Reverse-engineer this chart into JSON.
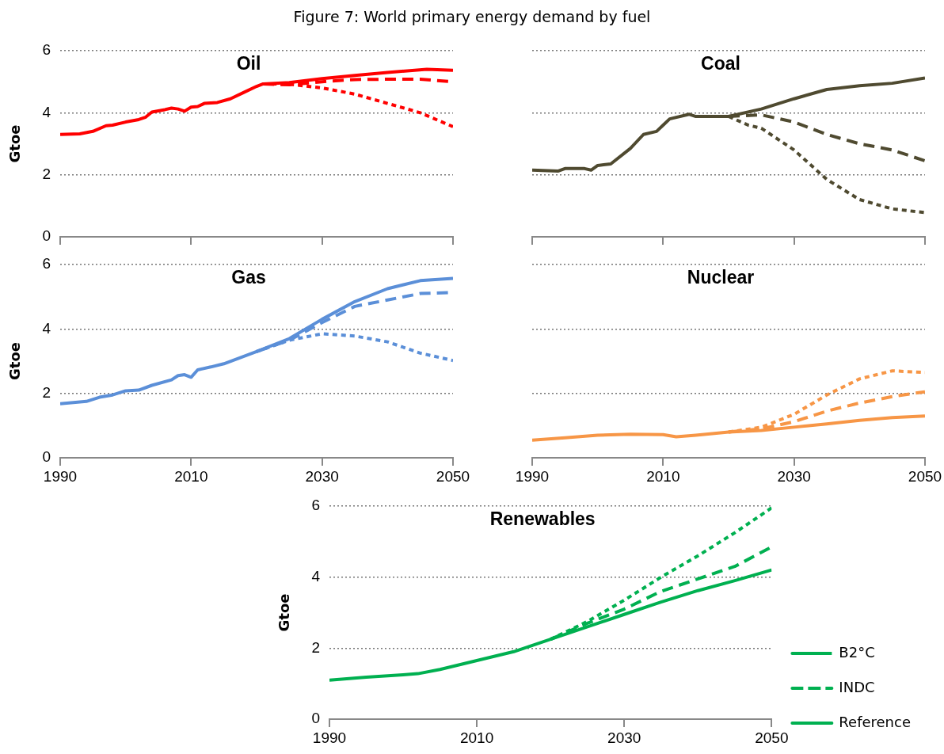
{
  "chart_data": [
    {
      "type": "line",
      "title": "Oil",
      "ylabel": "Gtoe",
      "annotations": [
        "Figure 7: World primary energy demand by fuel"
      ],
      "xlim": [
        1990,
        2050
      ],
      "xticks": [
        1990,
        2010,
        2030,
        2050
      ],
      "ylim": [
        0,
        6
      ],
      "yticks": [
        0,
        2,
        4,
        6
      ],
      "grid": "y",
      "tick_labels": "y",
      "series": [
        {
          "color": "#ff0000",
          "line_style": "dotted",
          "x": [
            2021,
            2025,
            2030,
            2035,
            2040,
            2045,
            2050
          ],
          "values": [
            4.93,
            4.92,
            4.8,
            4.6,
            4.3,
            4.0,
            3.55
          ]
        },
        {
          "color": "#ff0000",
          "line_style": "dashed",
          "x": [
            2021,
            2025,
            2030,
            2035,
            2040,
            2045,
            2050
          ],
          "values": [
            4.93,
            4.9,
            5.0,
            5.07,
            5.08,
            5.08,
            5.0
          ]
        },
        {
          "color": "#ff0000",
          "line_style": "solid",
          "x": [
            1990,
            1993,
            1995,
            1997,
            1998,
            2000,
            2002,
            2003,
            2004,
            2006,
            2007,
            2008,
            2009,
            2010,
            2011,
            2012,
            2014,
            2016,
            2018,
            2020,
            2021,
            2025,
            2030,
            2035,
            2040,
            2046,
            2050
          ],
          "values": [
            3.3,
            3.32,
            3.4,
            3.58,
            3.6,
            3.7,
            3.78,
            3.85,
            4.02,
            4.1,
            4.15,
            4.12,
            4.05,
            4.18,
            4.2,
            4.3,
            4.33,
            4.45,
            4.65,
            4.85,
            4.93,
            4.97,
            5.1,
            5.2,
            5.3,
            5.4,
            5.37
          ]
        }
      ]
    },
    {
      "type": "line",
      "title": "Coal",
      "xlim": [
        1990,
        2050
      ],
      "xticks": [
        1990,
        2010,
        2030,
        2050
      ],
      "ylim": [
        0,
        6
      ],
      "yticks": [
        0,
        2,
        4,
        6
      ],
      "grid": "y",
      "tick_labels": false,
      "series": [
        {
          "color": "#4f4a30",
          "line_style": "dotted",
          "x": [
            2020,
            2023,
            2025,
            2030,
            2035,
            2040,
            2045,
            2050
          ],
          "values": [
            3.88,
            3.6,
            3.5,
            2.8,
            1.85,
            1.2,
            0.9,
            0.78
          ]
        },
        {
          "color": "#4f4a30",
          "line_style": "dashed",
          "x": [
            2020,
            2025,
            2030,
            2035,
            2040,
            2045,
            2050
          ],
          "values": [
            3.88,
            3.93,
            3.7,
            3.3,
            3.0,
            2.8,
            2.45
          ]
        },
        {
          "color": "#4f4a30",
          "line_style": "solid",
          "x": [
            1990,
            1994,
            1995,
            1998,
            1999,
            2000,
            2002,
            2005,
            2007,
            2009,
            2010,
            2011,
            2014,
            2015,
            2020,
            2025,
            2030,
            2035,
            2040,
            2045,
            2050
          ],
          "values": [
            2.15,
            2.12,
            2.2,
            2.2,
            2.15,
            2.3,
            2.35,
            2.85,
            3.3,
            3.4,
            3.6,
            3.8,
            3.95,
            3.88,
            3.88,
            4.12,
            4.45,
            4.75,
            4.87,
            4.95,
            5.12
          ]
        }
      ]
    },
    {
      "type": "line",
      "title": "Gas",
      "ylabel": "Gtoe",
      "xlim": [
        1990,
        2050
      ],
      "xticks": [
        1990,
        2010,
        2030,
        2050
      ],
      "ylim": [
        0,
        6
      ],
      "yticks": [
        0,
        2,
        4,
        6
      ],
      "grid": "y",
      "series": [
        {
          "color": "#5b8fd8",
          "line_style": "dotted",
          "x": [
            2020,
            2025,
            2030,
            2035,
            2040,
            2045,
            2050
          ],
          "values": [
            3.3,
            3.65,
            3.85,
            3.78,
            3.6,
            3.25,
            3.02
          ]
        },
        {
          "color": "#5b8fd8",
          "line_style": "dashed",
          "x": [
            2020,
            2025,
            2030,
            2035,
            2040,
            2045,
            2050
          ],
          "values": [
            3.3,
            3.65,
            4.2,
            4.7,
            4.9,
            5.1,
            5.13
          ]
        },
        {
          "color": "#5b8fd8",
          "line_style": "solid",
          "x": [
            1990,
            1994,
            1996,
            1998,
            2000,
            2002,
            2004,
            2007,
            2008,
            2009,
            2010,
            2011,
            2013,
            2015,
            2020,
            2025,
            2030,
            2035,
            2040,
            2045,
            2050
          ],
          "values": [
            1.68,
            1.75,
            1.88,
            1.95,
            2.08,
            2.1,
            2.25,
            2.42,
            2.55,
            2.58,
            2.5,
            2.73,
            2.82,
            2.92,
            3.3,
            3.7,
            4.3,
            4.85,
            5.25,
            5.5,
            5.57
          ]
        }
      ]
    },
    {
      "type": "line",
      "title": "Nuclear",
      "xlim": [
        1990,
        2050
      ],
      "xticks": [
        1990,
        2010,
        2030,
        2050
      ],
      "ylim": [
        0,
        6
      ],
      "yticks": [
        0,
        2,
        4,
        6
      ],
      "grid": "y",
      "tick_labels": "x",
      "series": [
        {
          "color": "#f79646",
          "line_style": "dotted",
          "x": [
            2020,
            2025,
            2030,
            2035,
            2040,
            2045,
            2050
          ],
          "values": [
            0.8,
            0.95,
            1.35,
            1.95,
            2.45,
            2.7,
            2.65
          ]
        },
        {
          "color": "#f79646",
          "line_style": "dashed",
          "x": [
            2020,
            2025,
            2030,
            2035,
            2040,
            2045,
            2050
          ],
          "values": [
            0.8,
            0.9,
            1.12,
            1.45,
            1.7,
            1.9,
            2.05
          ]
        },
        {
          "color": "#f79646",
          "line_style": "solid",
          "x": [
            1990,
            1995,
            2000,
            2005,
            2010,
            2012,
            2015,
            2020,
            2025,
            2030,
            2035,
            2040,
            2045,
            2050
          ],
          "values": [
            0.55,
            0.62,
            0.7,
            0.73,
            0.72,
            0.65,
            0.7,
            0.8,
            0.85,
            0.95,
            1.05,
            1.16,
            1.25,
            1.3
          ]
        }
      ]
    },
    {
      "type": "line",
      "title": "Renewables",
      "ylabel": "Gtoe",
      "xlim": [
        1990,
        2050
      ],
      "xticks": [
        1990,
        2010,
        2030,
        2050
      ],
      "ylim": [
        0,
        6
      ],
      "yticks": [
        0,
        2,
        4,
        6
      ],
      "grid": "y",
      "legend": "right",
      "series": [
        {
          "name": "B2°C",
          "color": "#00b050",
          "line_style": "dotted",
          "x": [
            2020,
            2025,
            2030,
            2035,
            2040,
            2045,
            2050
          ],
          "values": [
            2.25,
            2.75,
            3.35,
            4.0,
            4.6,
            5.25,
            5.95
          ]
        },
        {
          "name": "INDC",
          "color": "#00b050",
          "line_style": "dashed",
          "x": [
            2020,
            2025,
            2030,
            2035,
            2040,
            2045,
            2050
          ],
          "values": [
            2.25,
            2.7,
            3.1,
            3.6,
            3.95,
            4.3,
            4.85
          ]
        },
        {
          "name": "Reference",
          "color": "#00b050",
          "line_style": "solid",
          "x": [
            1990,
            1995,
            2000,
            2002,
            2005,
            2010,
            2015,
            2020,
            2025,
            2030,
            2035,
            2040,
            2045,
            2050
          ],
          "values": [
            1.1,
            1.18,
            1.25,
            1.28,
            1.4,
            1.65,
            1.9,
            2.25,
            2.6,
            2.95,
            3.3,
            3.62,
            3.9,
            4.2
          ]
        }
      ]
    }
  ]
}
